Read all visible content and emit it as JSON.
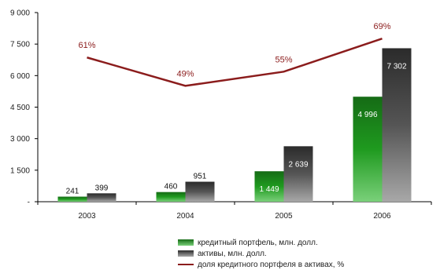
{
  "chart_data": {
    "type": "bar",
    "categories": [
      "2003",
      "2004",
      "2005",
      "2006"
    ],
    "ylim": [
      0,
      9000
    ],
    "yticks": [
      {
        "value": 0,
        "label": "-"
      },
      {
        "value": 1500,
        "label": "1 500"
      },
      {
        "value": 3000,
        "label": "3 000"
      },
      {
        "value": 4500,
        "label": "4 500"
      },
      {
        "value": 6000,
        "label": "6 000"
      },
      {
        "value": 7500,
        "label": "7 500"
      },
      {
        "value": 9000,
        "label": "9 000"
      }
    ],
    "series": [
      {
        "name": "кредитный портфель, млн. долл.",
        "values": [
          241,
          460,
          1449,
          4996
        ],
        "labels": [
          "241",
          "460",
          "1 449",
          "4 996"
        ],
        "color": "#1e8a1e"
      },
      {
        "name": "активы, млн. долл.",
        "values": [
          399,
          951,
          2639,
          7302
        ],
        "labels": [
          "399",
          "951",
          "2 639",
          "7 302"
        ],
        "color": "#4a4a4a"
      }
    ],
    "line_series": {
      "name": "доля кредитного портфеля в активах, %",
      "values": [
        61,
        49,
        55,
        69
      ],
      "labels": [
        "61%",
        "49%",
        "55%",
        "69%"
      ],
      "color": "#8b1c1c"
    },
    "grid": false,
    "legend_position": "bottom"
  }
}
